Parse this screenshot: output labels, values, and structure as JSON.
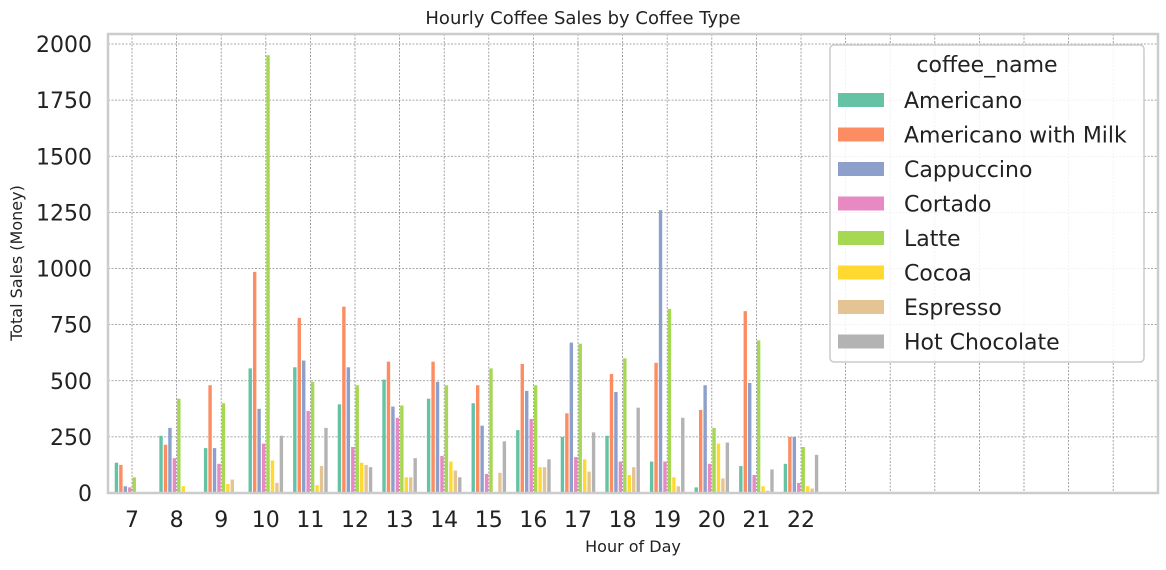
{
  "chart_data": {
    "type": "bar",
    "title": "Hourly Coffee Sales by Coffee Type",
    "xlabel": "Hour of Day",
    "ylabel": "Total Sales (Money)",
    "ylim": [
      0,
      2000
    ],
    "yticks": [
      0,
      250,
      500,
      750,
      1000,
      1250,
      1500,
      1750,
      2000
    ],
    "grid": true,
    "legend_position": "top-right",
    "legend_title": "coffee_name",
    "categories": [
      "7",
      "8",
      "9",
      "10",
      "11",
      "12",
      "13",
      "14",
      "15",
      "16",
      "17",
      "18",
      "19",
      "20",
      "21",
      "22"
    ],
    "series": [
      {
        "name": "Americano",
        "color": "#66c2a5",
        "values": [
          135,
          255,
          200,
          555,
          560,
          395,
          505,
          420,
          400,
          280,
          250,
          255,
          140,
          25,
          120,
          130
        ]
      },
      {
        "name": "Americano with Milk",
        "color": "#fc8d62",
        "values": [
          125,
          215,
          480,
          985,
          780,
          830,
          585,
          585,
          480,
          575,
          355,
          530,
          580,
          370,
          810,
          250
        ]
      },
      {
        "name": "Cappuccino",
        "color": "#8da0cb",
        "values": [
          30,
          290,
          200,
          375,
          590,
          560,
          385,
          495,
          300,
          455,
          670,
          450,
          1260,
          480,
          490,
          250
        ]
      },
      {
        "name": "Cortado",
        "color": "#e78ac3",
        "values": [
          25,
          155,
          130,
          220,
          365,
          205,
          335,
          165,
          85,
          330,
          160,
          140,
          140,
          130,
          80,
          45
        ]
      },
      {
        "name": "Latte",
        "color": "#a6d854",
        "values": [
          70,
          420,
          400,
          1950,
          495,
          480,
          390,
          480,
          555,
          480,
          665,
          600,
          820,
          290,
          680,
          205
        ]
      },
      {
        "name": "Cocoa",
        "color": "#ffd92f",
        "values": [
          0,
          30,
          40,
          145,
          35,
          135,
          70,
          140,
          0,
          115,
          150,
          80,
          70,
          220,
          30,
          30
        ]
      },
      {
        "name": "Espresso",
        "color": "#e5c494",
        "values": [
          0,
          0,
          60,
          45,
          120,
          125,
          70,
          100,
          90,
          115,
          95,
          115,
          30,
          65,
          10,
          20
        ]
      },
      {
        "name": "Hot Chocolate",
        "color": "#b3b3b3",
        "values": [
          0,
          0,
          0,
          255,
          290,
          115,
          155,
          70,
          230,
          150,
          270,
          380,
          335,
          225,
          105,
          170
        ]
      }
    ]
  }
}
